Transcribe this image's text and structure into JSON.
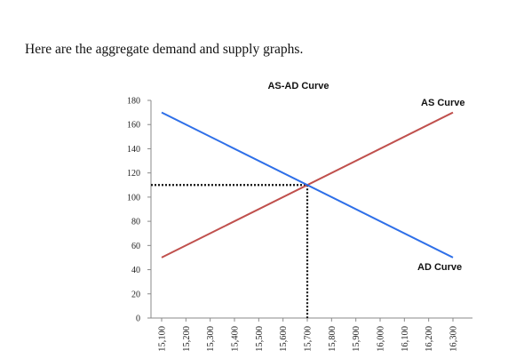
{
  "document": {
    "intro_text": "Here are the aggregate demand and supply graphs."
  },
  "chart_data": {
    "type": "line",
    "title": "AS-AD Curve",
    "xlabel": "",
    "ylabel": "",
    "x_ticks": [
      "15,100",
      "15,200",
      "15,300",
      "15,400",
      "15,500",
      "15,600",
      "15,700",
      "15,800",
      "15,900",
      "16,000",
      "16,100",
      "16,200",
      "16,300"
    ],
    "y_ticks": [
      0,
      20,
      40,
      60,
      80,
      100,
      120,
      140,
      160,
      180
    ],
    "xlim": [
      15100,
      16300
    ],
    "ylim": [
      0,
      180
    ],
    "grid": false,
    "series": [
      {
        "name": "AS Curve",
        "color": "#c0504d",
        "x": [
          15100,
          16300
        ],
        "y": [
          50,
          170
        ]
      },
      {
        "name": "AD Curve",
        "color": "#2e6fe8",
        "x": [
          15100,
          16300
        ],
        "y": [
          170,
          50
        ]
      }
    ],
    "equilibrium": {
      "x": 15700,
      "y": 110,
      "style": "dotted"
    }
  }
}
